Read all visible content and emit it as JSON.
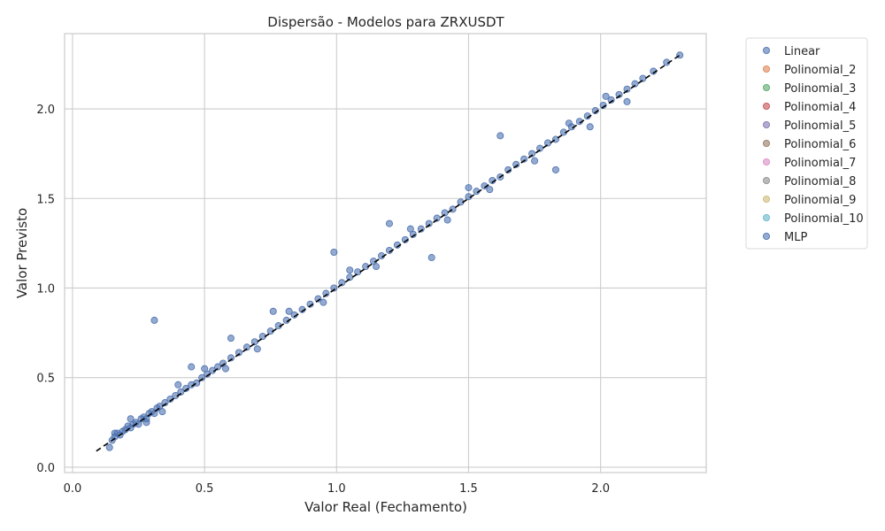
{
  "chart_data": {
    "type": "scatter",
    "title": "Dispersão - Modelos para ZRXUSDT",
    "xlabel": "Valor Real (Fechamento)",
    "ylabel": "Valor Previsto",
    "xlim": [
      -0.03,
      2.4
    ],
    "ylim": [
      -0.03,
      2.42
    ],
    "xticks": [
      0.0,
      0.5,
      1.0,
      1.5,
      2.0
    ],
    "xtick_labels": [
      "0.0",
      "0.5",
      "1.0",
      "1.5",
      "2.0"
    ],
    "yticks": [
      0.0,
      0.5,
      1.0,
      1.5,
      2.0
    ],
    "ytick_labels": [
      "0.0",
      "0.5",
      "1.0",
      "1.5",
      "2.0"
    ],
    "grid": true,
    "legend_position": "outside-right",
    "reference_line": {
      "x": [
        0.09,
        2.3
      ],
      "y": [
        0.09,
        2.3
      ],
      "style": "dashed",
      "color": "#000000"
    },
    "series": [
      {
        "name": "Linear",
        "color": "#4c72b0"
      },
      {
        "name": "Polinomial_2",
        "color": "#dd8452"
      },
      {
        "name": "Polinomial_3",
        "color": "#55a868"
      },
      {
        "name": "Polinomial_4",
        "color": "#c44e52"
      },
      {
        "name": "Polinomial_5",
        "color": "#8172b3"
      },
      {
        "name": "Polinomial_6",
        "color": "#937860"
      },
      {
        "name": "Polinomial_7",
        "color": "#da8bc3"
      },
      {
        "name": "Polinomial_8",
        "color": "#8c8c8c"
      },
      {
        "name": "Polinomial_9",
        "color": "#ccb974"
      },
      {
        "name": "Polinomial_10",
        "color": "#64b5cd"
      },
      {
        "name": "MLP",
        "color": "#4c72b0"
      }
    ],
    "points": {
      "x": [
        0.14,
        0.15,
        0.16,
        0.17,
        0.18,
        0.19,
        0.2,
        0.21,
        0.22,
        0.23,
        0.24,
        0.25,
        0.26,
        0.27,
        0.28,
        0.29,
        0.3,
        0.31,
        0.32,
        0.33,
        0.35,
        0.37,
        0.39,
        0.41,
        0.43,
        0.45,
        0.47,
        0.49,
        0.51,
        0.53,
        0.55,
        0.57,
        0.6,
        0.63,
        0.66,
        0.69,
        0.72,
        0.75,
        0.78,
        0.81,
        0.84,
        0.87,
        0.9,
        0.93,
        0.96,
        0.99,
        1.02,
        1.05,
        1.08,
        1.11,
        1.14,
        1.17,
        1.2,
        1.23,
        1.26,
        1.29,
        1.32,
        1.35,
        1.38,
        1.41,
        1.44,
        1.47,
        1.5,
        1.53,
        1.56,
        1.59,
        1.62,
        1.65,
        1.68,
        1.71,
        1.74,
        1.77,
        1.8,
        1.83,
        1.86,
        1.89,
        1.92,
        1.95,
        1.98,
        2.01,
        2.04,
        2.07,
        2.1,
        2.13,
        2.16,
        2.2,
        2.25,
        2.3,
        0.31,
        0.45,
        0.6,
        0.76,
        0.99,
        1.2,
        1.36,
        1.62,
        1.83,
        2.02,
        0.16,
        0.22,
        0.28,
        0.34,
        0.4,
        0.5,
        0.58,
        0.7,
        0.82,
        0.95,
        1.05,
        1.15,
        1.28,
        1.42,
        1.5,
        1.58,
        1.75,
        1.88,
        1.96,
        2.1
      ],
      "y": [
        0.11,
        0.15,
        0.17,
        0.19,
        0.18,
        0.2,
        0.21,
        0.23,
        0.22,
        0.24,
        0.25,
        0.24,
        0.27,
        0.28,
        0.27,
        0.3,
        0.31,
        0.3,
        0.33,
        0.34,
        0.36,
        0.38,
        0.4,
        0.42,
        0.44,
        0.46,
        0.47,
        0.5,
        0.52,
        0.54,
        0.56,
        0.58,
        0.61,
        0.64,
        0.67,
        0.7,
        0.73,
        0.76,
        0.79,
        0.82,
        0.85,
        0.88,
        0.91,
        0.94,
        0.97,
        1.0,
        1.03,
        1.06,
        1.09,
        1.12,
        1.15,
        1.18,
        1.21,
        1.24,
        1.27,
        1.3,
        1.33,
        1.36,
        1.39,
        1.42,
        1.44,
        1.48,
        1.51,
        1.54,
        1.57,
        1.6,
        1.62,
        1.66,
        1.69,
        1.72,
        1.75,
        1.78,
        1.81,
        1.83,
        1.87,
        1.9,
        1.93,
        1.96,
        1.99,
        2.02,
        2.05,
        2.08,
        2.11,
        2.14,
        2.17,
        2.21,
        2.26,
        2.3,
        0.82,
        0.56,
        0.72,
        0.87,
        1.2,
        1.36,
        1.17,
        1.85,
        1.66,
        2.07,
        0.19,
        0.27,
        0.25,
        0.31,
        0.46,
        0.55,
        0.55,
        0.66,
        0.87,
        0.92,
        1.1,
        1.12,
        1.33,
        1.38,
        1.56,
        1.55,
        1.71,
        1.92,
        1.9,
        2.04
      ]
    }
  }
}
